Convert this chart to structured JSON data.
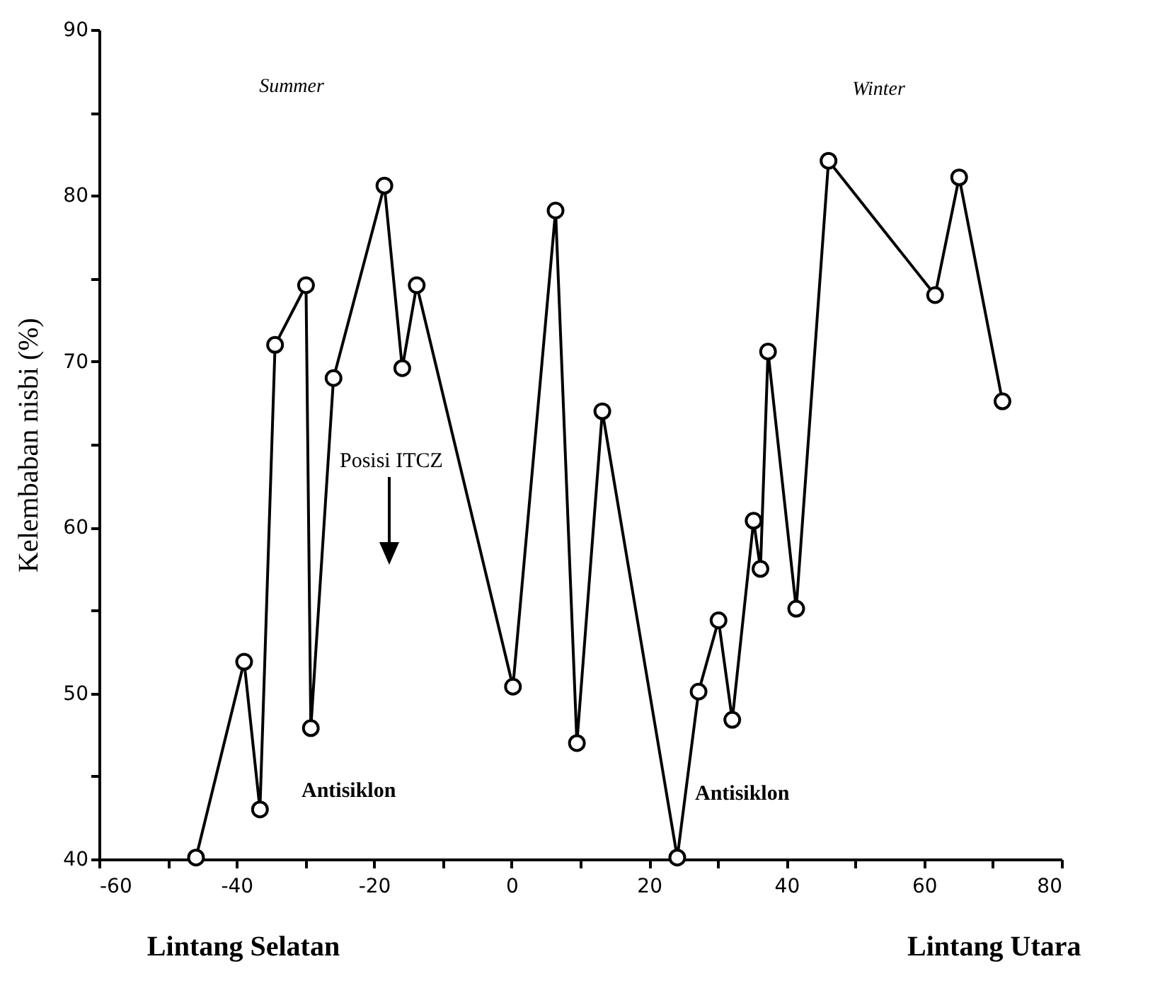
{
  "chart_data": {
    "type": "line",
    "ylabel": "Kelembaban nisbi (%)",
    "x": [
      -45.9,
      -38.9,
      -36.6,
      -34.4,
      -29.9,
      -29.2,
      -25.9,
      -18.5,
      -15.9,
      -13.8,
      0.2,
      6.4,
      9.5,
      13.2,
      24.1,
      27.2,
      30.1,
      32.1,
      35.2,
      36.2,
      37.3,
      41.4,
      46.1,
      61.6,
      65.1,
      71.4
    ],
    "series": [
      {
        "color": "#000000",
        "values": [
          40.1,
          51.9,
          43.0,
          71.0,
          74.6,
          47.9,
          69.0,
          80.6,
          69.6,
          74.6,
          50.4,
          79.1,
          47.0,
          67.0,
          40.1,
          50.1,
          54.4,
          48.4,
          60.4,
          57.5,
          70.6,
          55.1,
          82.1,
          74.0,
          81.1,
          67.6
        ]
      }
    ],
    "xlim": [
      -60,
      80
    ],
    "xticks": [
      -60,
      {
        "value": -50,
        "label": null
      },
      -40,
      {
        "value": -30,
        "label": null
      },
      -20,
      {
        "value": -10,
        "label": null
      },
      0,
      {
        "value": 10,
        "label": null
      },
      20,
      {
        "value": 30,
        "label": null
      },
      40,
      {
        "value": 50,
        "label": null
      },
      60,
      {
        "value": 70,
        "label": null
      },
      80
    ],
    "ylim": [
      40,
      90
    ],
    "yticks": [
      40,
      {
        "value": 45,
        "label": null
      },
      50,
      {
        "value": 55,
        "label": null
      },
      60,
      {
        "value": 65,
        "label": null
      },
      70,
      {
        "value": 75,
        "label": null
      },
      80,
      {
        "value": 85,
        "label": null
      },
      90
    ],
    "annotations": [
      "Summer",
      "Winter",
      "Lintang Selatan",
      "Lintang Utara",
      "Posisi ITCZ",
      "Antisiklon",
      "Antisiklon"
    ],
    "grid": false,
    "marker": "circle",
    "line_style": "solid"
  }
}
